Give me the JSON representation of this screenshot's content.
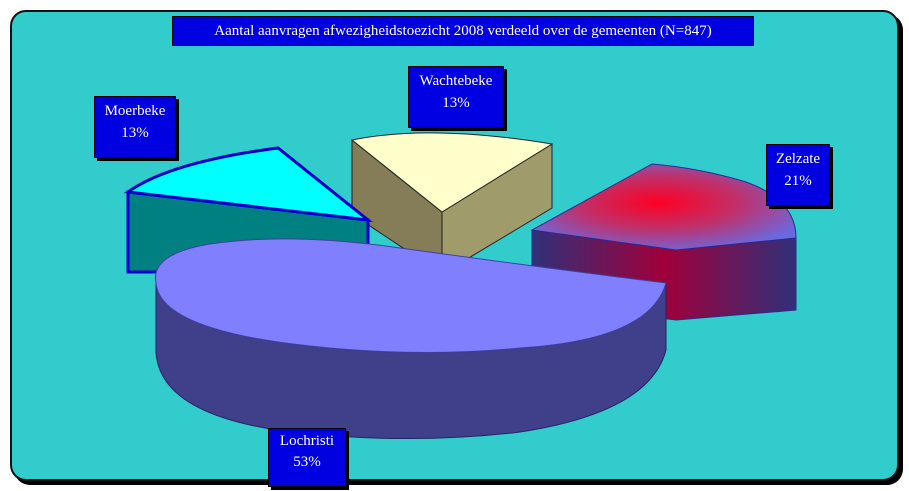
{
  "chart_data": {
    "type": "pie",
    "title": "Aantal aanvragen afwezigheidstoezicht 2008 verdeeld over de gemeenten (N=847)",
    "slices": [
      {
        "label": "Lochristi",
        "percent_label": "53%",
        "value": 53
      },
      {
        "label": "Zelzate",
        "percent_label": "21%",
        "value": 21
      },
      {
        "label": "Wachtebeke",
        "percent_label": "13%",
        "value": 13
      },
      {
        "label": "Moerbeke",
        "percent_label": "13%",
        "value": 13
      }
    ],
    "style": "3d-exploded"
  },
  "colors": {
    "background": "#33cccc",
    "label_box": "#0000e0",
    "lochristi": "#8080ff",
    "zelzate": "#ff0033",
    "wachtebeke": "#ffffcc",
    "moerbeke": "#00ffff"
  }
}
